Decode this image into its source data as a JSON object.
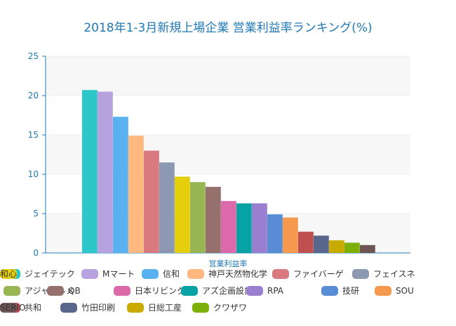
{
  "chart_data": {
    "type": "bar",
    "title": "2018年1-3月新規上場企業 営業利益率ランキング(%)",
    "xlabel": "営業利益率",
    "ylabel": "",
    "ylim": [
      0,
      25
    ],
    "yticks": [
      0,
      5,
      10,
      15,
      20,
      25
    ],
    "grid": true,
    "legend_position": "bottom",
    "series": [
      {
        "name": "ジェイテック",
        "value": 20.7,
        "color": "#2ec7c9"
      },
      {
        "name": "Mマート",
        "value": 20.5,
        "color": "#b6a2de"
      },
      {
        "name": "信和",
        "value": 17.3,
        "color": "#5ab1ef"
      },
      {
        "name": "神戸天然物化学",
        "value": 14.9,
        "color": "#ffb980"
      },
      {
        "name": "ファイバーゲ",
        "value": 13.0,
        "color": "#d87a80"
      },
      {
        "name": "フェイスネ",
        "value": 11.5,
        "color": "#8d98b3"
      },
      {
        "name": "和心",
        "value": 9.7,
        "color": "#e5cf0d"
      },
      {
        "name": "アジャイルメ",
        "value": 9.0,
        "color": "#97b552"
      },
      {
        "name": "QB",
        "value": 8.4,
        "color": "#95706d"
      },
      {
        "name": "日本リビング",
        "value": 6.6,
        "color": "#dc69aa"
      },
      {
        "name": "アズ企画設計",
        "value": 6.3,
        "color": "#07a2a4"
      },
      {
        "name": "RPA",
        "value": 6.3,
        "color": "#9a7fd1"
      },
      {
        "name": "技研",
        "value": 4.9,
        "color": "#588dd5"
      },
      {
        "name": "SOU",
        "value": 4.5,
        "color": "#f5994e"
      },
      {
        "name": "共和",
        "value": 2.7,
        "color": "#c05050"
      },
      {
        "name": "竹田印刷",
        "value": 2.2,
        "color": "#59678c"
      },
      {
        "name": "日総工産",
        "value": 1.6,
        "color": "#c9ab00"
      },
      {
        "name": "クワザワ",
        "value": 1.3,
        "color": "#7eb00a"
      },
      {
        "name": "SERIO",
        "value": 1.0,
        "color": "#6f5553"
      }
    ]
  }
}
